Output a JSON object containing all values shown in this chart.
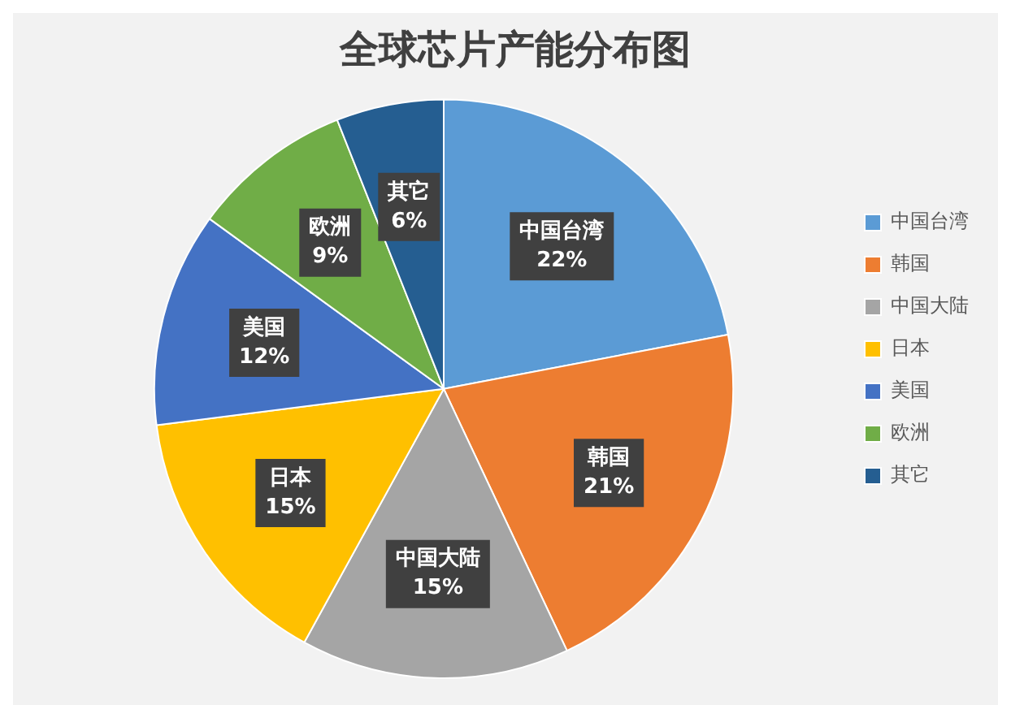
{
  "chart_data": {
    "type": "pie",
    "title": "全球芯片产能分布图",
    "categories": [
      "中国台湾",
      "韩国",
      "中国大陆",
      "日本",
      "美国",
      "欧洲",
      "其它"
    ],
    "values": [
      22,
      21,
      15,
      15,
      12,
      9,
      6
    ],
    "value_labels": [
      "22%",
      "21%",
      "15%",
      "15%",
      "12%",
      "9%",
      "6%"
    ],
    "colors": [
      "#5b9bd5",
      "#ed7d31",
      "#a5a5a5",
      "#ffc000",
      "#4472c4",
      "#70ad47",
      "#255e91"
    ],
    "legend": "right"
  }
}
